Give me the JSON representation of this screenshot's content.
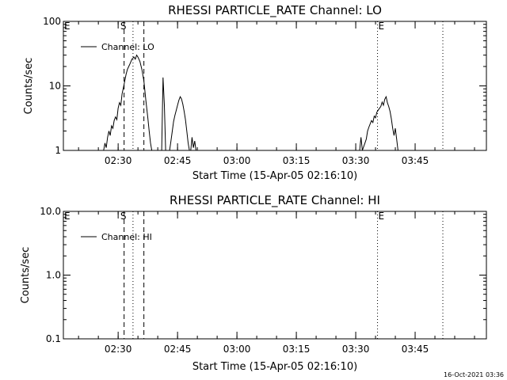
{
  "footer": {
    "timestamp": "16-Oct-2021 03:36"
  },
  "chart_data": [
    {
      "type": "line",
      "title": "RHESSI PARTICLE_RATE Channel: LO",
      "xlabel": "Start Time (15-Apr-05 02:16:10)",
      "ylabel": "Counts/sec",
      "xscale": "time",
      "yscale": "log",
      "xlim": [
        "02:16:10",
        "04:03:00"
      ],
      "ylim": [
        1,
        100
      ],
      "xticks": [
        "02:30",
        "02:45",
        "03:00",
        "03:15",
        "03:30",
        "03:45"
      ],
      "yticks": [
        "1",
        "10",
        "100"
      ],
      "legend": {
        "position": "top-left",
        "entries": [
          "Channel: LO"
        ]
      },
      "grid": false,
      "markers": [
        {
          "label": "E",
          "time": "02:16:10",
          "style": "none"
        },
        {
          "label": "S",
          "time": "02:31:30",
          "style": "dashed"
        },
        {
          "time": "02:33:45",
          "style": "dotted"
        },
        {
          "time": "02:36:30",
          "style": "dashed"
        },
        {
          "label": "E",
          "time": "03:35:30",
          "style": "dotted"
        },
        {
          "time": "03:52:00",
          "style": "dotted"
        }
      ],
      "series": [
        {
          "name": "Channel: LO",
          "segments": [
            [
              [
                "02:26:20",
                1.0
              ],
              [
                "02:26:40",
                1.3
              ],
              [
                "02:27:00",
                1.1
              ],
              [
                "02:27:20",
                1.6
              ],
              [
                "02:27:40",
                2.0
              ],
              [
                "02:28:00",
                1.7
              ],
              [
                "02:28:20",
                2.4
              ],
              [
                "02:28:40",
                2.2
              ],
              [
                "02:29:00",
                2.9
              ],
              [
                "02:29:20",
                3.3
              ],
              [
                "02:29:40",
                3.0
              ],
              [
                "02:30:00",
                4.5
              ],
              [
                "02:30:20",
                5.5
              ],
              [
                "02:30:40",
                5.0
              ],
              [
                "02:31:00",
                7.5
              ],
              [
                "02:31:30",
                10.5
              ],
              [
                "02:32:00",
                15
              ],
              [
                "02:32:20",
                18
              ],
              [
                "02:32:40",
                20
              ],
              [
                "02:33:00",
                22
              ],
              [
                "02:33:30",
                26
              ],
              [
                "02:34:00",
                28
              ],
              [
                "02:34:20",
                26
              ],
              [
                "02:34:40",
                30
              ],
              [
                "02:35:00",
                28
              ],
              [
                "02:35:30",
                24
              ],
              [
                "02:36:00",
                18
              ],
              [
                "02:36:30",
                12
              ],
              [
                "02:37:00",
                6
              ],
              [
                "02:37:30",
                3.2
              ],
              [
                "02:37:50",
                2.0
              ],
              [
                "02:38:10",
                1.3
              ],
              [
                "02:38:30",
                1.0
              ]
            ],
            [
              [
                "02:41:00",
                1.0
              ],
              [
                "02:41:20",
                13.5
              ],
              [
                "02:41:40",
                5.0
              ],
              [
                "02:42:00",
                1.0
              ]
            ],
            [
              [
                "02:43:00",
                1.0
              ],
              [
                "02:43:20",
                1.4
              ],
              [
                "02:43:40",
                2.0
              ],
              [
                "02:44:00",
                2.8
              ],
              [
                "02:44:20",
                3.5
              ],
              [
                "02:44:40",
                4.2
              ],
              [
                "02:45:00",
                5.0
              ],
              [
                "02:45:20",
                6.0
              ],
              [
                "02:45:40",
                6.8
              ],
              [
                "02:46:00",
                6.3
              ],
              [
                "02:46:20",
                5.2
              ],
              [
                "02:46:40",
                4.0
              ],
              [
                "02:47:00",
                3.0
              ],
              [
                "02:47:20",
                2.0
              ],
              [
                "02:47:40",
                1.3
              ],
              [
                "02:48:00",
                1.0
              ]
            ],
            [
              [
                "02:48:20",
                1.0
              ],
              [
                "02:48:40",
                1.6
              ],
              [
                "02:49:00",
                1.1
              ],
              [
                "02:49:20",
                1.4
              ],
              [
                "02:49:40",
                1.0
              ]
            ],
            [
              [
                "03:31:00",
                1.0
              ],
              [
                "03:31:20",
                1.6
              ],
              [
                "03:31:40",
                1.0
              ],
              [
                "03:32:20",
                1.3
              ],
              [
                "03:32:40",
                1.5
              ],
              [
                "03:33:00",
                2.0
              ],
              [
                "03:33:20",
                2.3
              ],
              [
                "03:33:40",
                2.6
              ],
              [
                "03:34:00",
                2.9
              ],
              [
                "03:34:20",
                2.7
              ],
              [
                "03:34:40",
                3.4
              ],
              [
                "03:35:00",
                3.2
              ],
              [
                "03:35:20",
                3.9
              ],
              [
                "03:35:40",
                4.2
              ],
              [
                "03:36:00",
                4.5
              ],
              [
                "03:36:20",
                4.8
              ],
              [
                "03:36:40",
                5.6
              ],
              [
                "03:37:00",
                5.0
              ],
              [
                "03:37:20",
                6.2
              ],
              [
                "03:37:40",
                6.8
              ],
              [
                "03:38:00",
                5.5
              ],
              [
                "03:38:20",
                4.8
              ],
              [
                "03:38:40",
                4.0
              ],
              [
                "03:39:00",
                3.1
              ],
              [
                "03:39:20",
                2.2
              ],
              [
                "03:39:40",
                1.7
              ],
              [
                "03:40:00",
                2.2
              ],
              [
                "03:40:20",
                1.5
              ],
              [
                "03:40:40",
                1.0
              ]
            ]
          ]
        }
      ]
    },
    {
      "type": "line",
      "title": "RHESSI PARTICLE_RATE Channel: HI",
      "xlabel": "Start Time (15-Apr-05 02:16:10)",
      "ylabel": "Counts/sec",
      "xscale": "time",
      "yscale": "log",
      "xlim": [
        "02:16:10",
        "04:03:00"
      ],
      "ylim": [
        0.1,
        10
      ],
      "xticks": [
        "02:30",
        "02:45",
        "03:00",
        "03:15",
        "03:30",
        "03:45"
      ],
      "yticks": [
        "0.1",
        "1.0",
        "10.0"
      ],
      "legend": {
        "position": "top-left",
        "entries": [
          "Channel: HI"
        ]
      },
      "grid": false,
      "markers": [
        {
          "label": "E",
          "time": "02:16:10",
          "style": "none"
        },
        {
          "label": "S",
          "time": "02:31:30",
          "style": "dashed"
        },
        {
          "time": "02:33:45",
          "style": "dotted"
        },
        {
          "time": "02:36:30",
          "style": "dashed"
        },
        {
          "label": "E",
          "time": "03:35:30",
          "style": "dotted"
        },
        {
          "time": "03:52:00",
          "style": "dotted"
        }
      ],
      "series": [
        {
          "name": "Channel: HI",
          "segments": []
        }
      ]
    }
  ]
}
